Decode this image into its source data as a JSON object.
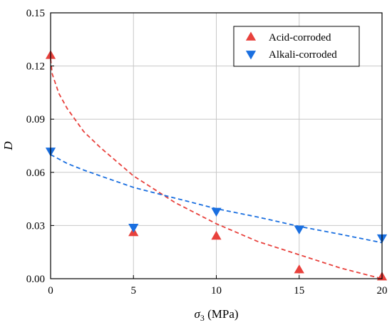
{
  "chart_data": {
    "type": "scatter",
    "xlim": [
      0,
      20
    ],
    "ylim": [
      0,
      0.15
    ],
    "xticks": [
      0,
      5,
      10,
      15,
      20
    ],
    "yticks": [
      0,
      0.03,
      0.06,
      0.09,
      0.12,
      0.15
    ],
    "x_tick_labels": [
      "0",
      "5",
      "10",
      "15",
      "20"
    ],
    "y_tick_labels": [
      "0.00",
      "0.03",
      "0.06",
      "0.09",
      "0.12",
      "0.15"
    ],
    "xlabel": {
      "symbol": "σ",
      "subscript": "3",
      "suffix": " (MPa)"
    },
    "ylabel": "D",
    "grid": true,
    "legend_position": "top-right",
    "series": [
      {
        "name": "Acid-corroded",
        "color": "#e8413c",
        "marker": "triangle-up",
        "x": [
          0,
          5,
          10,
          15,
          20
        ],
        "y": [
          0.126,
          0.026,
          0.024,
          0.005,
          0.001
        ],
        "fit": {
          "style": "dashed",
          "x": [
            0,
            0.1,
            0.5,
            1,
            2,
            3,
            5,
            7.5,
            10,
            12.5,
            15,
            17.5,
            20
          ],
          "y": [
            0.124,
            0.1155,
            0.1045,
            0.096,
            0.083,
            0.074,
            0.058,
            0.043,
            0.031,
            0.021,
            0.0135,
            0.006,
            0.0
          ]
        }
      },
      {
        "name": "Alkali-corroded",
        "color": "#1a6fe0",
        "marker": "triangle-down",
        "x": [
          0,
          5,
          10,
          15,
          20
        ],
        "y": [
          0.072,
          0.029,
          0.038,
          0.028,
          0.023
        ],
        "fit": {
          "style": "dashed",
          "x": [
            0,
            1,
            2,
            3,
            5,
            7.5,
            10,
            12.5,
            15,
            17.5,
            20
          ],
          "y": [
            0.07,
            0.065,
            0.0613,
            0.058,
            0.0515,
            0.0455,
            0.0395,
            0.0348,
            0.0295,
            0.025,
            0.0203
          ]
        }
      }
    ]
  }
}
